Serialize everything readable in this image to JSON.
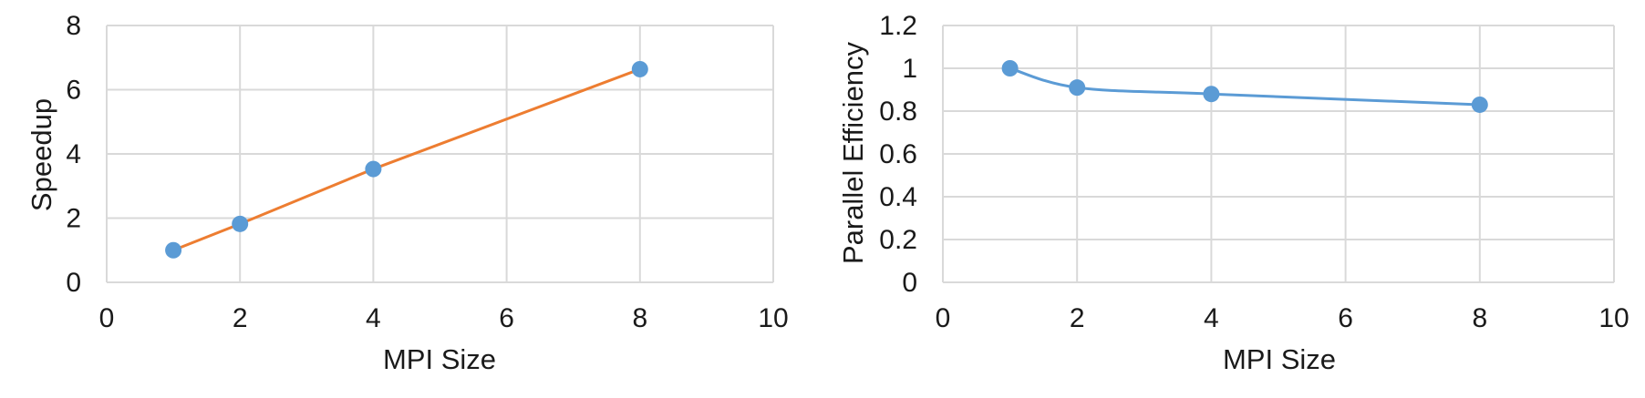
{
  "chart_data": [
    {
      "type": "line",
      "title": "",
      "xlabel": "MPI Size",
      "ylabel": "Speedup",
      "xlim": [
        0,
        10
      ],
      "ylim": [
        0,
        8
      ],
      "xticks": [
        0,
        2,
        4,
        6,
        8,
        10
      ],
      "yticks": [
        0,
        2,
        4,
        6,
        8
      ],
      "grid": true,
      "line_color": "#ED7D31",
      "marker_color": "#5B9BD5",
      "series": [
        {
          "name": "",
          "x": [
            1,
            2,
            4,
            8
          ],
          "y": [
            1.0,
            1.82,
            3.53,
            6.64
          ]
        }
      ]
    },
    {
      "type": "line",
      "title": "",
      "xlabel": "MPI Size",
      "ylabel": "Parallel Efficiency",
      "xlim": [
        0,
        10
      ],
      "ylim": [
        0,
        1.2
      ],
      "xticks": [
        0,
        2,
        4,
        6,
        8,
        10
      ],
      "yticks": [
        0,
        0.2,
        0.4,
        0.6,
        0.8,
        1,
        1.2
      ],
      "grid": true,
      "smooth": true,
      "line_color": "#5B9BD5",
      "marker_color": "#5B9BD5",
      "series": [
        {
          "name": "",
          "x": [
            1,
            2,
            4,
            8
          ],
          "y": [
            1.0,
            0.91,
            0.88,
            0.83
          ]
        }
      ]
    }
  ]
}
